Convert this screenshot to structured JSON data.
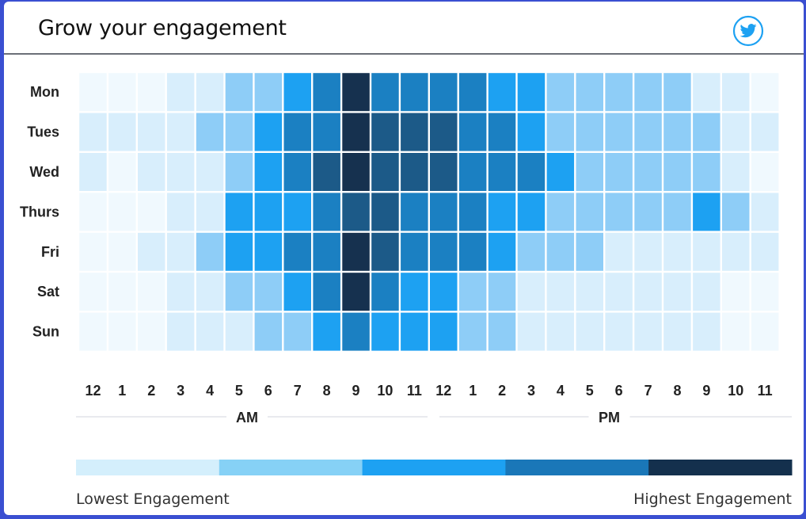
{
  "header": {
    "title": "Grow your engagement",
    "icon": "twitter-icon"
  },
  "colors": {
    "levels": [
      "#f0f9fe",
      "#d8eefc",
      "#8ecdf7",
      "#1da1f2",
      "#1b80c2",
      "#1c5a88",
      "#16314f"
    ],
    "legend": [
      "#d4effc",
      "#86d1f6",
      "#1da1f2",
      "#1a77b8",
      "#14304d"
    ],
    "twitter": "#1da1f2"
  },
  "legend": {
    "low_label": "Lowest Engagement",
    "high_label": "Highest Engagement"
  },
  "chart_data": {
    "type": "heatmap",
    "title": "",
    "rows": [
      "Mon",
      "Tues",
      "Wed",
      "Thurs",
      "Fri",
      "Sat",
      "Sun"
    ],
    "columns": [
      "12",
      "1",
      "2",
      "3",
      "4",
      "5",
      "6",
      "7",
      "8",
      "9",
      "10",
      "11",
      "12",
      "1",
      "2",
      "3",
      "4",
      "5",
      "6",
      "7",
      "8",
      "9",
      "10",
      "11"
    ],
    "column_groups": [
      {
        "label": "AM",
        "start": 0,
        "end": 11
      },
      {
        "label": "PM",
        "start": 12,
        "end": 23
      }
    ],
    "values": [
      [
        0,
        0,
        0,
        1,
        1,
        2,
        2,
        3,
        4,
        6,
        4,
        4,
        4,
        4,
        3,
        3,
        2,
        2,
        2,
        2,
        2,
        1,
        1,
        0
      ],
      [
        1,
        1,
        1,
        1,
        2,
        2,
        3,
        4,
        4,
        6,
        5,
        5,
        5,
        4,
        4,
        3,
        2,
        2,
        2,
        2,
        2,
        2,
        1,
        1
      ],
      [
        1,
        0,
        1,
        1,
        1,
        2,
        3,
        4,
        5,
        6,
        5,
        5,
        5,
        4,
        4,
        4,
        3,
        2,
        2,
        2,
        2,
        2,
        1,
        0
      ],
      [
        0,
        0,
        0,
        1,
        1,
        3,
        3,
        3,
        4,
        5,
        5,
        4,
        4,
        4,
        3,
        3,
        2,
        2,
        2,
        2,
        2,
        3,
        2,
        1
      ],
      [
        0,
        0,
        1,
        1,
        2,
        3,
        3,
        4,
        4,
        6,
        5,
        4,
        4,
        4,
        3,
        2,
        2,
        2,
        1,
        1,
        1,
        1,
        1,
        1
      ],
      [
        0,
        0,
        0,
        1,
        1,
        2,
        2,
        3,
        4,
        6,
        4,
        3,
        3,
        2,
        2,
        1,
        1,
        1,
        1,
        1,
        1,
        1,
        0,
        0
      ],
      [
        0,
        0,
        0,
        1,
        1,
        1,
        2,
        2,
        3,
        4,
        3,
        3,
        3,
        2,
        2,
        1,
        1,
        1,
        1,
        1,
        1,
        1,
        0,
        0
      ]
    ],
    "scale": [
      "Lowest Engagement",
      "Highest Engagement"
    ]
  }
}
